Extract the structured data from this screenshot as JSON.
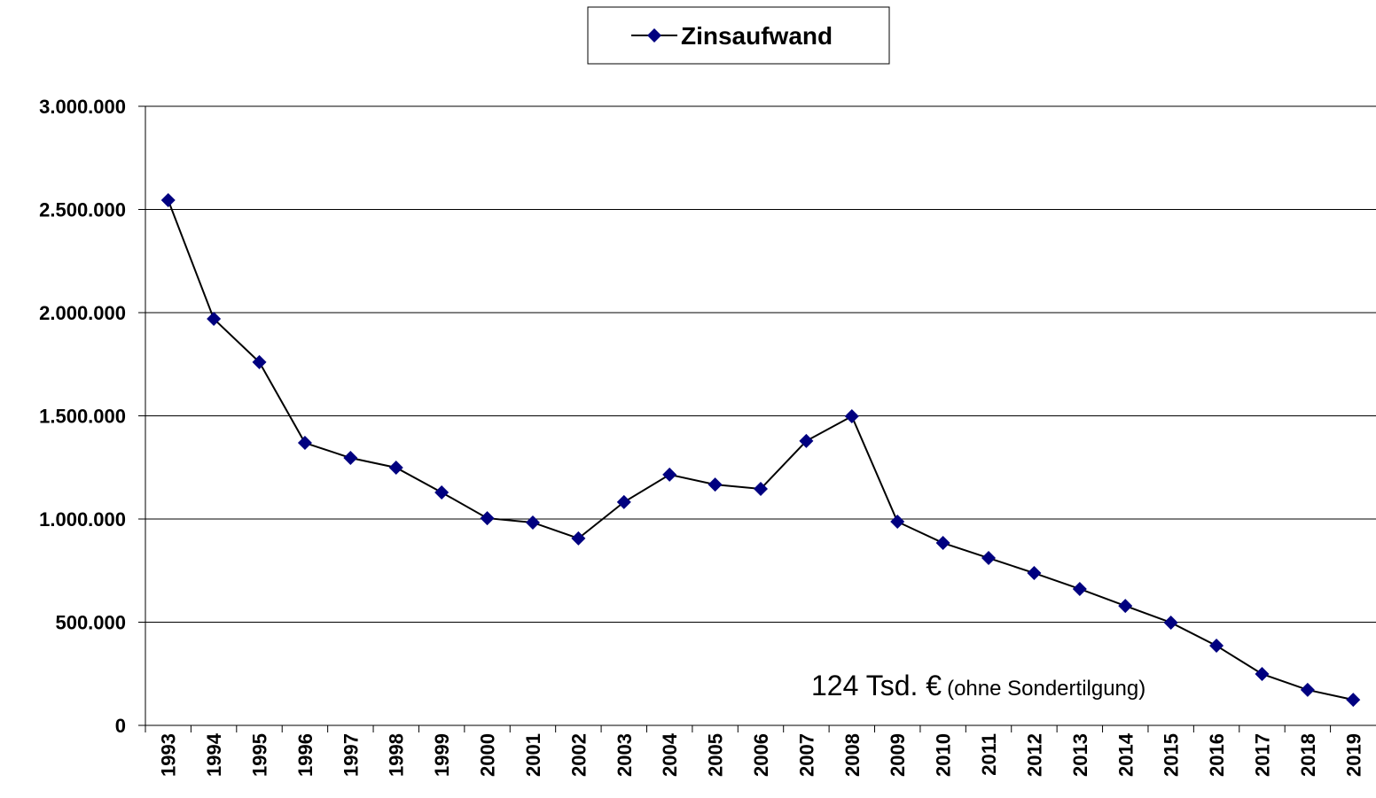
{
  "chart_data": {
    "type": "line",
    "categories": [
      "1993",
      "1994",
      "1995",
      "1996",
      "1997",
      "1998",
      "1999",
      "2000",
      "2001",
      "2002",
      "2003",
      "2004",
      "2005",
      "2006",
      "2007",
      "2008",
      "2009",
      "2010",
      "2011",
      "2012",
      "2013",
      "2014",
      "2015",
      "2016",
      "2017",
      "2018",
      "2019"
    ],
    "series": [
      {
        "name": "Zinsaufwand",
        "color": "#000080",
        "line_color": "#000000",
        "values": [
          2545000,
          1970000,
          1760000,
          1369000,
          1296000,
          1249000,
          1129000,
          1004000,
          983000,
          906000,
          1082000,
          1215000,
          1167000,
          1146000,
          1378000,
          1498000,
          987000,
          884000,
          811000,
          738000,
          661000,
          579000,
          498000,
          386000,
          249000,
          172000,
          124000
        ]
      }
    ],
    "ylim": [
      0,
      3000000
    ],
    "yticks": [
      0,
      {
        "value": 500000,
        "label": "500.000"
      },
      {
        "value": 1000000,
        "label": "1.000.000"
      },
      {
        "value": 1500000,
        "label": "1.500.000"
      },
      {
        "value": 2000000,
        "label": "2.000.000"
      },
      {
        "value": 2500000,
        "label": "2.500.000"
      },
      {
        "value": 3000000,
        "label": "3.000.000"
      }
    ],
    "grid": true,
    "legend": "top",
    "annotations": [
      "124 Tsd. €",
      "(ohne Sondertilgung)"
    ]
  }
}
